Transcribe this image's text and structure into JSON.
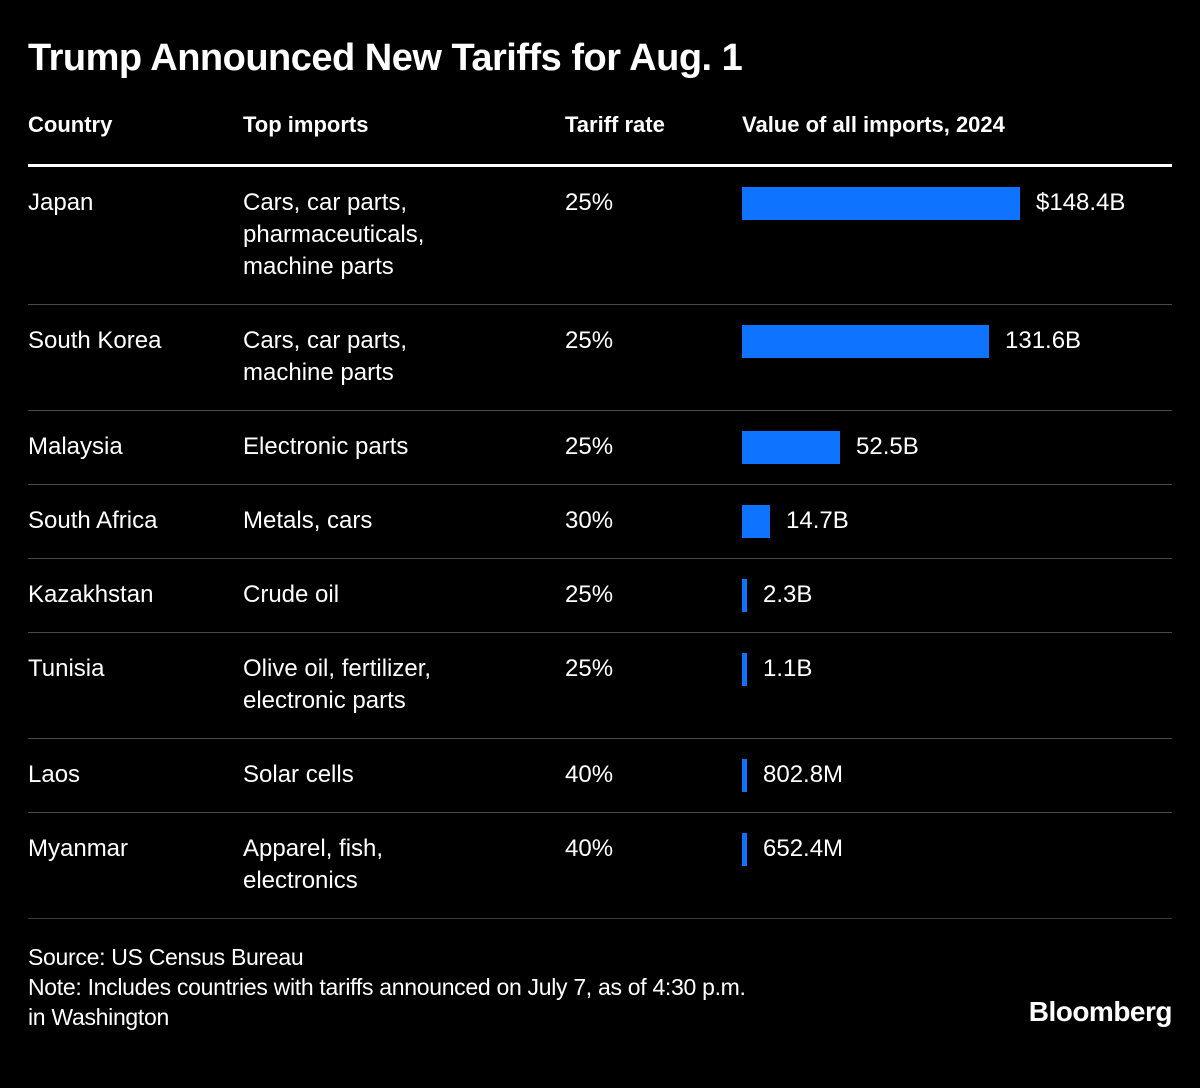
{
  "title": "Trump Announced New Tariffs for Aug. 1",
  "columns": [
    "Country",
    "Top imports",
    "Tariff rate",
    "Value of all imports, 2024"
  ],
  "rows": [
    {
      "country": "Japan",
      "imports": "Cars, car parts,\npharmaceuticals,\nmachine parts",
      "tariff_rate": "25%",
      "value_label": "$148.4B",
      "value_billions": 148.4
    },
    {
      "country": "South Korea",
      "imports": "Cars, car parts,\nmachine parts",
      "tariff_rate": "25%",
      "value_label": "131.6B",
      "value_billions": 131.6
    },
    {
      "country": "Malaysia",
      "imports": "Electronic parts",
      "tariff_rate": "25%",
      "value_label": "52.5B",
      "value_billions": 52.5
    },
    {
      "country": "South Africa",
      "imports": "Metals, cars",
      "tariff_rate": "30%",
      "value_label": "14.7B",
      "value_billions": 14.7
    },
    {
      "country": "Kazakhstan",
      "imports": "Crude oil",
      "tariff_rate": "25%",
      "value_label": "2.3B",
      "value_billions": 2.3
    },
    {
      "country": "Tunisia",
      "imports": "Olive oil, fertilizer,\nelectronic parts",
      "tariff_rate": "25%",
      "value_label": "1.1B",
      "value_billions": 1.1
    },
    {
      "country": "Laos",
      "imports": "Solar cells",
      "tariff_rate": "40%",
      "value_label": "802.8M",
      "value_billions": 0.8028
    },
    {
      "country": "Myanmar",
      "imports": "Apparel, fish,\nelectronics",
      "tariff_rate": "40%",
      "value_label": "652.4M",
      "value_billions": 0.6524
    }
  ],
  "footer": {
    "source": "Source: US Census Bureau",
    "note": "Note: Includes countries with tariffs announced on July 7, as of 4:30 p.m.\nin Washington",
    "brand": "Bloomberg"
  },
  "colors": {
    "background": "#000000",
    "text": "#ffffff",
    "bar": "#0e74ff",
    "row_separator": "#4a4a4a",
    "header_rule": "#ffffff",
    "bottom_rule": "#3a3a3a"
  },
  "chart_data": {
    "type": "bar",
    "orientation": "horizontal",
    "title": "Trump Announced New Tariffs for Aug. 1",
    "categories": [
      "Japan",
      "South Korea",
      "Malaysia",
      "South Africa",
      "Kazakhstan",
      "Tunisia",
      "Laos",
      "Myanmar"
    ],
    "values_billions_usd": [
      148.4,
      131.6,
      52.5,
      14.7,
      2.3,
      1.1,
      0.8028,
      0.6524
    ],
    "value_labels": [
      "$148.4B",
      "131.6B",
      "52.5B",
      "14.7B",
      "2.3B",
      "1.1B",
      "802.8M",
      "652.4M"
    ],
    "tariff_rates_pct": [
      25,
      25,
      25,
      30,
      25,
      25,
      40,
      40
    ],
    "top_imports": [
      "Cars, car parts, pharmaceuticals, machine parts",
      "Cars, car parts, machine parts",
      "Electronic parts",
      "Metals, cars",
      "Crude oil",
      "Olive oil, fertilizer, electronic parts",
      "Solar cells",
      "Apparel, fish, electronics"
    ],
    "xlabel": "Value of all imports, 2024",
    "xlim": [
      0,
      148.4
    ],
    "bar_color": "#0e74ff",
    "grid": false,
    "legend": false,
    "source": "US Census Bureau",
    "note": "Includes countries with tariffs announced on July 7, as of 4:30 p.m. in Washington",
    "brand": "Bloomberg"
  }
}
